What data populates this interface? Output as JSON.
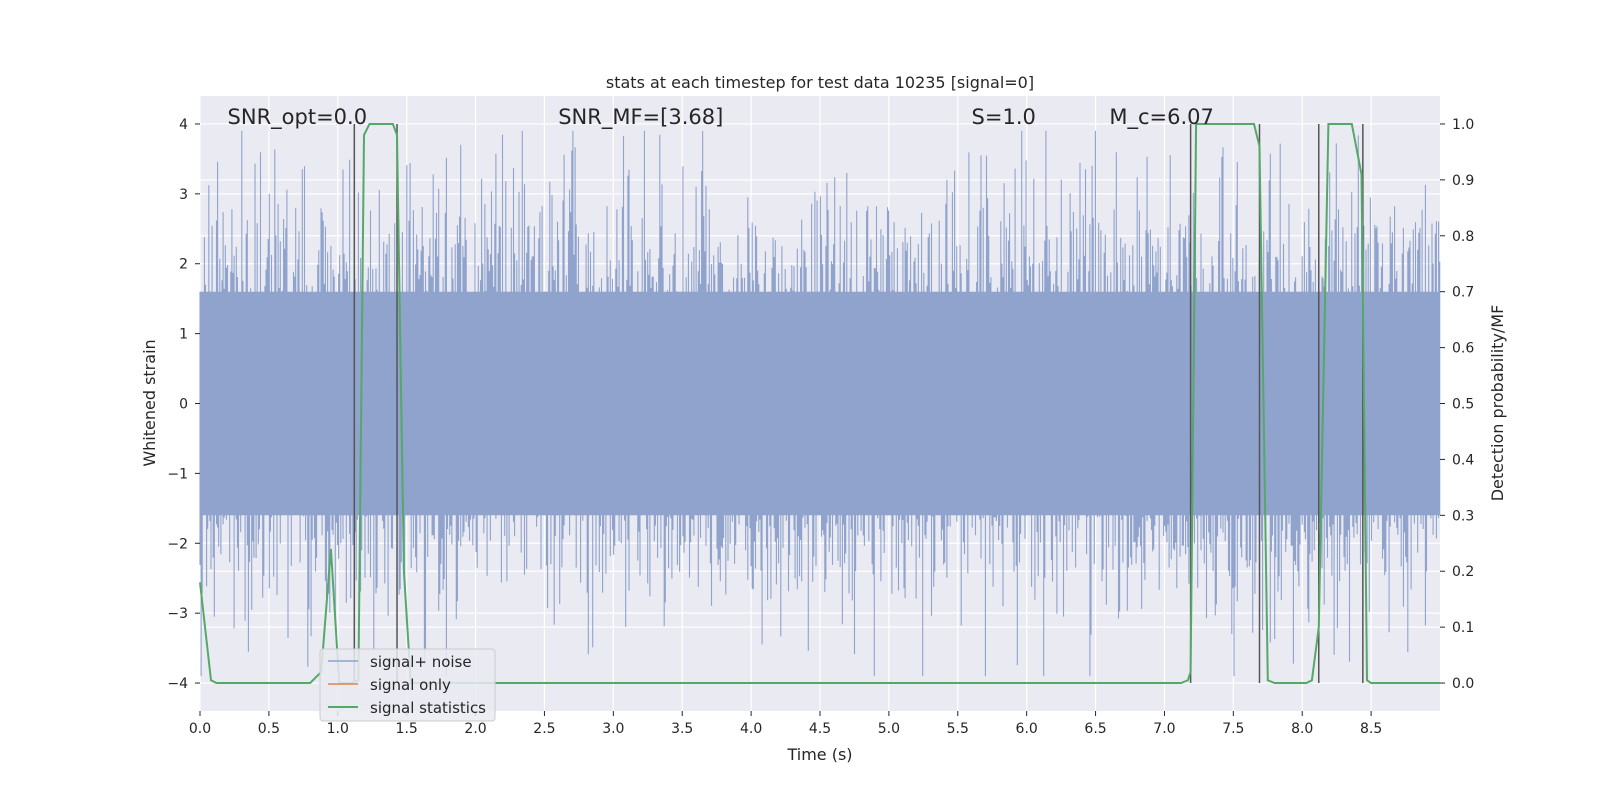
{
  "chart_data": {
    "type": "line",
    "title": "stats at each timestep for test data 10235 [signal=0]",
    "xlabel": "Time (s)",
    "ylabel": "Whitened strain",
    "y2label": "Detection probability/MF",
    "xlim": [
      0,
      9.0
    ],
    "ylim": [
      -4.4,
      4.4
    ],
    "y2lim": [
      -0.05,
      1.05
    ],
    "xticks": [
      "0.0",
      "0.5",
      "1.0",
      "1.5",
      "2.0",
      "2.5",
      "3.0",
      "3.5",
      "4.0",
      "4.5",
      "5.0",
      "5.5",
      "6.0",
      "6.5",
      "7.0",
      "7.5",
      "8.0",
      "8.5"
    ],
    "yticks": [
      "−4",
      "−3",
      "−2",
      "−1",
      "0",
      "1",
      "2",
      "3",
      "4"
    ],
    "y2ticks": [
      "0.0",
      "0.1",
      "0.2",
      "0.3",
      "0.4",
      "0.5",
      "0.6",
      "0.7",
      "0.8",
      "0.9",
      "1.0"
    ],
    "grid": true,
    "legend_position": "lower-left",
    "annotations": [
      {
        "text": "SNR_opt=0.0",
        "x": 0.2
      },
      {
        "text": "SNR_MF=[3.68]",
        "x": 2.6
      },
      {
        "text": "S=1.0",
        "x": 5.6
      },
      {
        "text": "M_c=6.07",
        "x": 6.6
      }
    ],
    "vlines": [
      1.12,
      1.43,
      7.19,
      7.69,
      8.12,
      8.44
    ],
    "series": [
      {
        "name": "signal+ noise",
        "color": "#8fa3cc",
        "kind": "noise",
        "sigma": 1.0,
        "envelope_max": 3.9
      },
      {
        "name": "signal only",
        "color": "#dd8452",
        "values": []
      },
      {
        "name": "signal statistics",
        "color": "#55a868",
        "axis": "right",
        "points": [
          [
            0.0,
            0.18
          ],
          [
            0.08,
            0.005
          ],
          [
            0.12,
            0.0
          ],
          [
            0.3,
            0.0
          ],
          [
            0.8,
            0.0
          ],
          [
            0.88,
            0.02
          ],
          [
            0.95,
            0.24
          ],
          [
            1.01,
            0.0
          ],
          [
            1.1,
            0.0
          ],
          [
            1.15,
            0.005
          ],
          [
            1.19,
            0.98
          ],
          [
            1.23,
            1.0
          ],
          [
            1.4,
            1.0
          ],
          [
            1.43,
            0.98
          ],
          [
            1.48,
            0.2
          ],
          [
            1.53,
            0.0
          ],
          [
            7.12,
            0.0
          ],
          [
            7.17,
            0.005
          ],
          [
            7.19,
            0.02
          ],
          [
            7.23,
            1.0
          ],
          [
            7.65,
            1.0
          ],
          [
            7.69,
            0.96
          ],
          [
            7.75,
            0.005
          ],
          [
            7.8,
            0.0
          ],
          [
            8.03,
            0.0
          ],
          [
            8.07,
            0.005
          ],
          [
            8.12,
            0.1
          ],
          [
            8.19,
            1.0
          ],
          [
            8.36,
            1.0
          ],
          [
            8.43,
            0.91
          ],
          [
            8.47,
            0.005
          ],
          [
            8.5,
            0.0
          ],
          [
            9.0,
            0.0
          ]
        ]
      }
    ]
  }
}
